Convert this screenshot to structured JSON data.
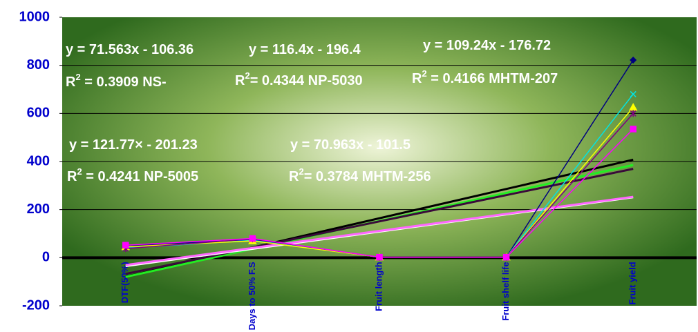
{
  "chart_data": {
    "type": "line",
    "categories": [
      "DTF(50%)",
      "Days to 50% F.S",
      "Fruit length",
      "Fruit shelf life",
      "Fruit yield"
    ],
    "ylim": [
      -200,
      1000
    ],
    "yticks": [
      -200,
      0,
      200,
      400,
      600,
      800,
      1000
    ],
    "grid": true,
    "series": [
      {
        "color": "#000080",
        "marker": "diamond",
        "values": [
          50,
          75,
          2,
          2,
          822
        ],
        "trend": {
          "slope": 121.77,
          "intercept": -201.23,
          "color": "#000000"
        }
      },
      {
        "color": "#00e5e5",
        "marker": "x",
        "values": [
          40,
          72,
          2,
          2,
          680
        ],
        "trend": {
          "slope": 116.4,
          "intercept": -196.4,
          "color": "#22ee22"
        }
      },
      {
        "color": "#ffff00",
        "marker": "triangle",
        "values": [
          45,
          70,
          2,
          2,
          625
        ],
        "trend": {
          "slope": 109.24,
          "intercept": -176.72,
          "color": "#3a0a3a"
        }
      },
      {
        "color": "#800080",
        "marker": "star",
        "values": [
          38,
          78,
          2,
          2,
          600
        ],
        "trend": {
          "slope": 71.563,
          "intercept": -106.36,
          "color": "#ffffff"
        }
      },
      {
        "color": "#ff00ff",
        "marker": "square",
        "values": [
          52,
          80,
          2,
          2,
          535
        ],
        "trend": {
          "slope": 70.963,
          "intercept": -101.5,
          "color": "#ff66ff"
        }
      }
    ],
    "annotations": [
      {
        "equation": "y = 71.563x - 106.36",
        "r2_base": "R",
        "r2_sup": "2",
        "r2_text": " = 0.3909 NS-"
      },
      {
        "equation": "y = 116.4x - 196.4",
        "r2_base": "R",
        "r2_sup": "2",
        "r2_text": "= 0.4344 NP-5030"
      },
      {
        "equation": "y = 109.24x - 176.72",
        "r2_base": "R",
        "r2_sup": "2",
        "r2_text": " = 0.4166 MHTM-207"
      },
      {
        "equation": "y = 121.77× - 201.23",
        "r2_base": "R",
        "r2_sup": "2",
        "r2_text": " = 0.4241 NP-5005"
      },
      {
        "equation": "y = 70.963x - 101.5",
        "r2_base": "R",
        "r2_sup": "2",
        "r2_text": "= 0.3784 MHTM-256"
      }
    ]
  }
}
